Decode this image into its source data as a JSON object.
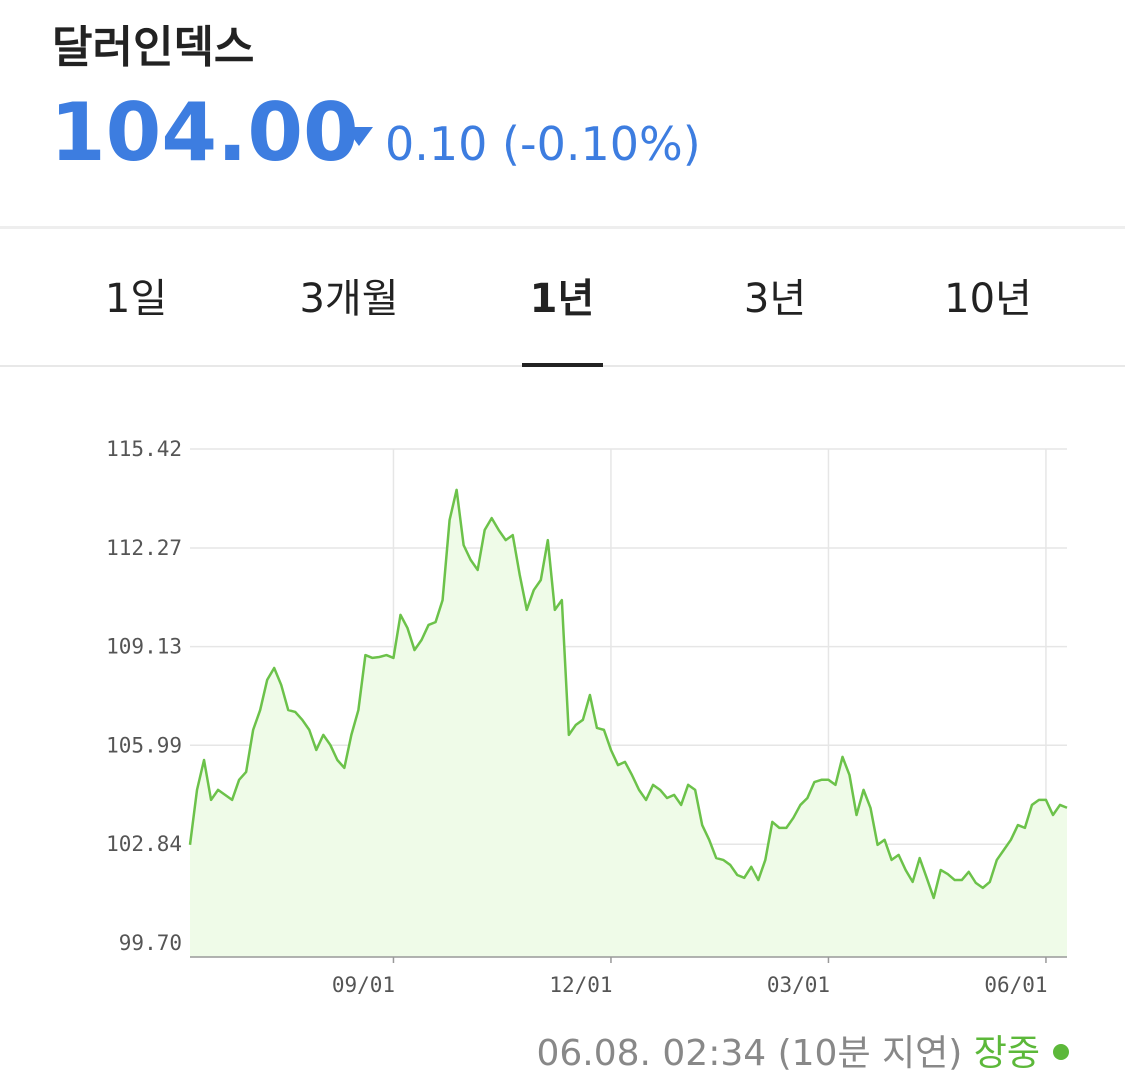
{
  "header": {
    "title": "달러인덱스",
    "price": "104.00",
    "change": "0.10",
    "change_pct": "(-0.10%)"
  },
  "tabs": {
    "items": [
      "1일",
      "3개월",
      "1년",
      "3년",
      "10년"
    ],
    "active": 2
  },
  "chart_data": {
    "type": "area",
    "color": "#6cc24a",
    "fill_color": "#effbe8",
    "grid": true,
    "ylim": [
      99.25,
      115.42
    ],
    "yticks": [
      {
        "value": 99.7,
        "label": "99.70"
      },
      102.84,
      105.99,
      109.13,
      112.27,
      115.42
    ],
    "categories": [
      null,
      null,
      null,
      null,
      null,
      null,
      null,
      null,
      null,
      null,
      null,
      null,
      null,
      null,
      null,
      null,
      null,
      null,
      null,
      null,
      null,
      null,
      null,
      null,
      null,
      null,
      null,
      null,
      null,
      "09/01",
      null,
      null,
      null,
      null,
      null,
      null,
      null,
      null,
      null,
      null,
      null,
      null,
      null,
      null,
      null,
      null,
      null,
      null,
      null,
      null,
      null,
      null,
      null,
      null,
      null,
      null,
      null,
      null,
      null,
      null,
      "12/01",
      null,
      null,
      null,
      null,
      null,
      null,
      null,
      null,
      null,
      null,
      null,
      null,
      null,
      null,
      null,
      null,
      null,
      null,
      null,
      null,
      null,
      null,
      null,
      null,
      null,
      null,
      null,
      null,
      null,
      null,
      "03/01",
      null,
      null,
      null,
      null,
      null,
      null,
      null,
      null,
      null,
      null,
      null,
      null,
      null,
      null,
      null,
      null,
      null,
      null,
      null,
      null,
      null,
      null,
      null,
      null,
      null,
      null,
      null,
      null,
      null,
      null,
      "06/01",
      null,
      null,
      null
    ],
    "values": [
      102.82,
      104.57,
      105.52,
      104.25,
      104.57,
      104.41,
      104.25,
      104.89,
      105.14,
      106.48,
      107.11,
      108.07,
      108.45,
      107.91,
      107.11,
      107.05,
      106.8,
      106.48,
      105.84,
      106.32,
      106.0,
      105.52,
      105.27,
      106.32,
      107.11,
      108.86,
      108.77,
      108.8,
      108.86,
      108.77,
      110.14,
      109.72,
      109.02,
      109.34,
      109.82,
      109.91,
      110.61,
      113.16,
      114.12,
      112.36,
      111.89,
      111.57,
      112.84,
      113.22,
      112.84,
      112.52,
      112.68,
      111.41,
      110.3,
      110.93,
      111.25,
      112.52,
      110.3,
      110.61,
      106.32,
      106.64,
      106.8,
      107.59,
      106.54,
      106.48,
      105.84,
      105.36,
      105.46,
      105.04,
      104.57,
      104.25,
      104.73,
      104.57,
      104.31,
      104.41,
      104.09,
      104.73,
      104.57,
      103.45,
      102.98,
      102.4,
      102.34,
      102.18,
      101.86,
      101.77,
      102.12,
      101.7,
      102.34,
      103.55,
      103.36,
      103.36,
      103.68,
      104.09,
      104.31,
      104.82,
      104.89,
      104.89,
      104.73,
      105.62,
      105.04,
      103.77,
      104.57,
      103.99,
      102.82,
      102.98,
      102.34,
      102.5,
      102.02,
      101.64,
      102.4,
      101.77,
      101.13,
      102.02,
      101.89,
      101.7,
      101.7,
      101.96,
      101.61,
      101.45,
      101.64,
      102.34,
      102.66,
      102.98,
      103.45,
      103.36,
      104.09,
      104.25,
      104.25,
      103.77,
      104.09,
      104.0
    ]
  },
  "footer": {
    "timestamp": "06.08. 02:34 (10분 지연)",
    "status": "장중"
  }
}
